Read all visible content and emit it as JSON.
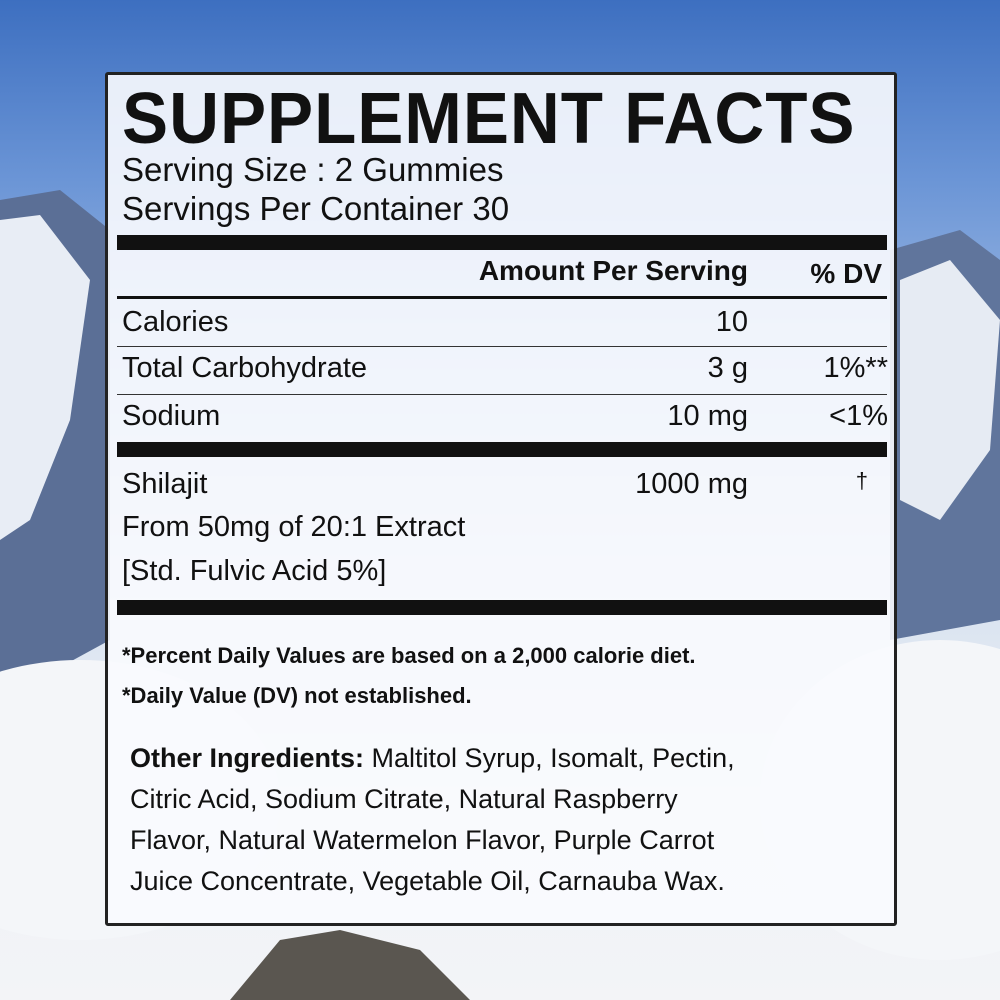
{
  "title": "SUPPLEMENT FACTS",
  "serving_size": "Serving Size : 2 Gummies",
  "servings_per_container": "Servings Per Container 30",
  "header": {
    "amount": "Amount Per Serving",
    "dv": "% DV"
  },
  "rows": [
    {
      "name": "Calories",
      "amount": "10",
      "dv": ""
    },
    {
      "name": "Total Carbohydrate",
      "amount": "3 g",
      "dv": "1%**"
    },
    {
      "name": "Sodium",
      "amount": "10 mg",
      "dv": "<1%"
    }
  ],
  "shilajit": {
    "name": "Shilajit",
    "amount": "1000 mg",
    "dv": "†",
    "detail1": "From 50mg of 20:1 Extract",
    "detail2": "[Std. Fulvic Acid 5%]"
  },
  "footnotes": [
    "*Percent Daily Values are based on a 2,000 calorie diet.",
    "*Daily Value (DV) not established."
  ],
  "other_ingredients": {
    "label": "Other Ingredients:",
    "lines": [
      " Maltitol Syrup, Isomalt, Pectin,",
      "Citric Acid, Sodium Citrate, Natural Raspberry",
      "Flavor, Natural Watermelon Flavor, Purple Carrot",
      "Juice Concentrate, Vegetable Oil, Carnauba Wax."
    ]
  }
}
